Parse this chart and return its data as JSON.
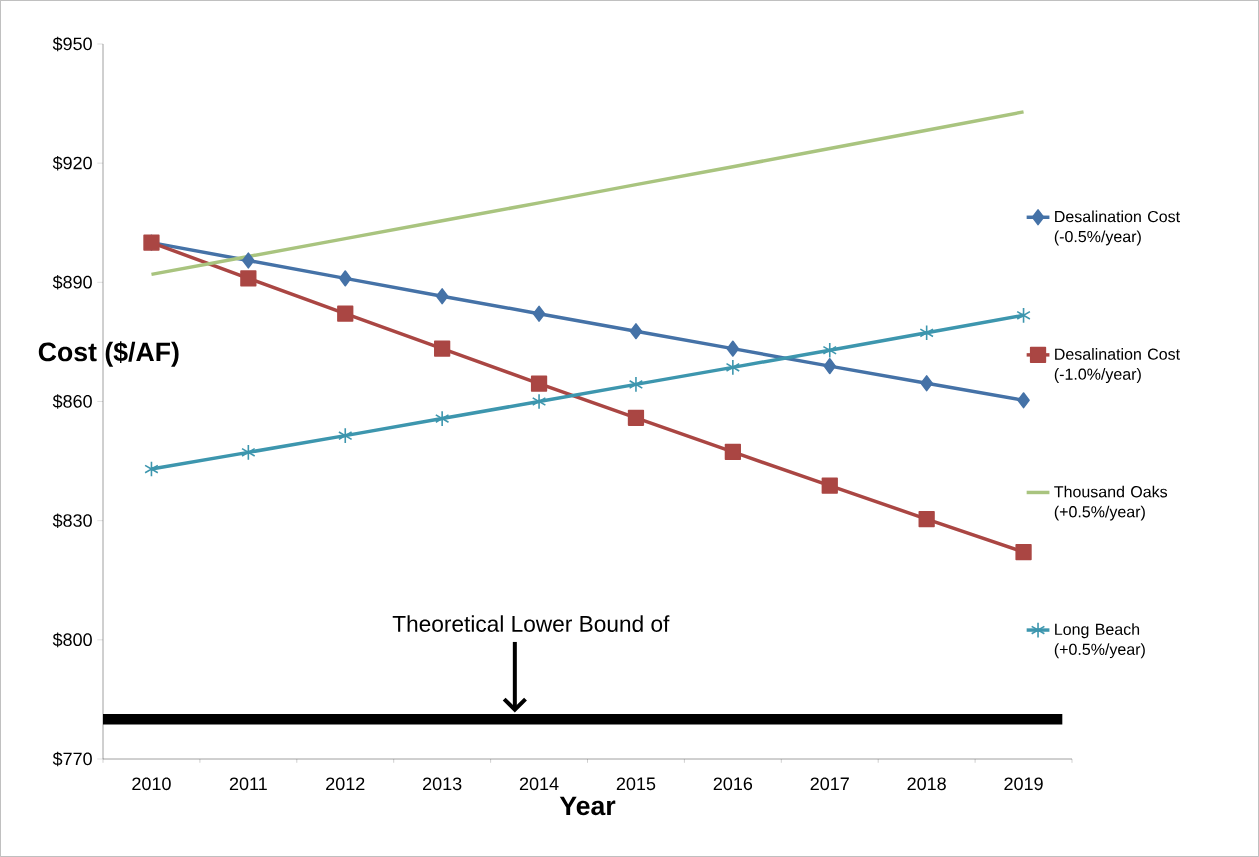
{
  "chart_data": {
    "type": "line",
    "categories": [
      "2010",
      "2011",
      "2012",
      "2013",
      "2014",
      "2015",
      "2016",
      "2017",
      "2018",
      "2019"
    ],
    "series": [
      {
        "name": "Desalination Cost (-0.5%/year)",
        "color": "#4572a7",
        "marker": "diamond",
        "values": [
          900,
          895.5,
          891,
          886.5,
          882.1,
          877.7,
          873.3,
          868.9,
          864.6,
          860.3
        ]
      },
      {
        "name": "Desalination Cost (-1.0%/year)",
        "color": "#aa4643",
        "marker": "square",
        "values": [
          900,
          891,
          882.1,
          873.3,
          864.5,
          855.9,
          847.3,
          838.8,
          830.4,
          822.1
        ]
      },
      {
        "name": "Thousand Oaks (+0.5%/year)",
        "color": "#a9c47f",
        "marker": "none",
        "values": [
          892,
          896.5,
          901,
          905.5,
          910,
          914.6,
          919.1,
          923.7,
          928.3,
          932.9
        ]
      },
      {
        "name": "Long Beach (+0.5%/year)",
        "color": "#3d96ae",
        "marker": "cross",
        "values": [
          843,
          847.2,
          851.4,
          855.7,
          860,
          864.3,
          868.6,
          872.9,
          877.3,
          881.7
        ]
      }
    ],
    "ylim": [
      770,
      950
    ],
    "yticks": [
      {
        "value": 770,
        "label": "$770"
      },
      {
        "value": 800,
        "label": "$800"
      },
      {
        "value": 830,
        "label": "$830"
      },
      {
        "value": 860,
        "label": "$860"
      },
      {
        "value": 890,
        "label": "$890"
      },
      {
        "value": 920,
        "label": "$920"
      },
      {
        "value": 950,
        "label": "$950"
      }
    ],
    "xlabel": "Year",
    "ylabel": "Cost  ($/AF)",
    "ref_lines": [
      {
        "axis": "y",
        "value": 780,
        "label": "Theoretical  Lower Bound of",
        "color": "#000000"
      }
    ],
    "legend": "right"
  }
}
